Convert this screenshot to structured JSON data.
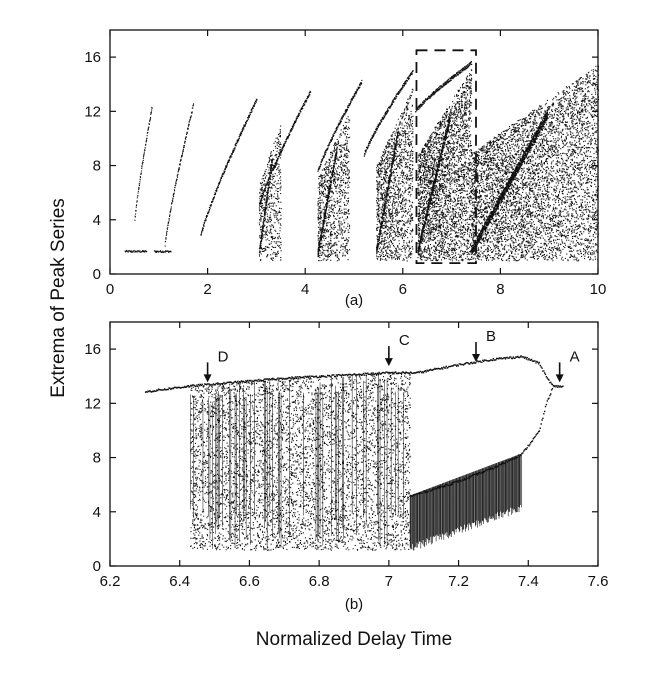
{
  "figure": {
    "ylabel": "Extrema of Peak Series",
    "xlabel": "Normalized Delay Time"
  },
  "chart_data": [
    {
      "type": "scatter",
      "panel_label": "(a)",
      "xlim": [
        0,
        10
      ],
      "ylim": [
        0,
        18
      ],
      "xticks": [
        0,
        2,
        4,
        6,
        8,
        10
      ],
      "yticks": [
        0,
        4,
        8,
        12,
        16
      ],
      "grid": false,
      "highlight_box": {
        "x": [
          6.28,
          7.5
        ],
        "y": [
          0.8,
          16.5
        ],
        "style": "dashed"
      },
      "branches": [
        {
          "x": [
            0.5,
            0.85
          ],
          "y": [
            4.0,
            12.3
          ]
        },
        {
          "x": [
            1.12,
            1.7
          ],
          "y": [
            2.2,
            12.5
          ]
        },
        {
          "x": [
            1.85,
            3.0
          ],
          "y": [
            2.8,
            12.9
          ]
        },
        {
          "x": [
            3.05,
            4.1
          ],
          "y": [
            5.0,
            13.5
          ]
        },
        {
          "x": [
            4.25,
            5.15
          ],
          "y": [
            7.5,
            14.2
          ]
        },
        {
          "x": [
            5.2,
            6.2
          ],
          "y": [
            8.8,
            15.0
          ]
        },
        {
          "x": [
            6.25,
            7.4
          ],
          "y": [
            12.0,
            15.6
          ]
        }
      ],
      "flat_segments": [
        {
          "x": [
            0.3,
            0.75
          ],
          "y": 1.7
        },
        {
          "x": [
            0.9,
            1.25
          ],
          "y": 1.7
        }
      ],
      "bands": [
        {
          "x": [
            3.05,
            3.5
          ],
          "y": [
            1.0,
            11.2
          ],
          "density": 0.6
        },
        {
          "x": [
            4.25,
            4.9
          ],
          "y": [
            1.0,
            12.0
          ],
          "density": 0.7
        },
        {
          "x": [
            5.45,
            6.2
          ],
          "y": [
            1.0,
            13.8
          ],
          "density": 0.8
        },
        {
          "x": [
            6.3,
            7.4
          ],
          "y": [
            1.0,
            15.2
          ],
          "density": 1.0
        },
        {
          "x": [
            7.4,
            10.0
          ],
          "y": [
            1.0,
            15.5
          ],
          "density": 1.0
        }
      ]
    },
    {
      "type": "scatter",
      "panel_label": "(b)",
      "xlim": [
        6.2,
        7.6
      ],
      "ylim": [
        0,
        18
      ],
      "xticks": [
        6.2,
        6.4,
        6.6,
        6.8,
        7.0,
        7.2,
        7.4,
        7.6
      ],
      "yticks": [
        0,
        4,
        8,
        12,
        16
      ],
      "grid": false,
      "annotations": [
        {
          "label": "D",
          "x": 6.48,
          "y": 13.4
        },
        {
          "label": "C",
          "x": 7.0,
          "y": 14.6
        },
        {
          "label": "B",
          "x": 7.25,
          "y": 14.9
        },
        {
          "label": "A",
          "x": 7.49,
          "y": 13.4
        }
      ],
      "upper_branch": {
        "x": [
          6.3,
          6.42,
          6.7,
          7.0,
          7.08,
          7.2,
          7.3,
          7.38,
          7.43,
          7.45,
          7.47,
          7.5
        ],
        "y": [
          12.9,
          13.3,
          13.9,
          14.3,
          14.3,
          14.9,
          15.3,
          15.5,
          15.0,
          14.0,
          13.3,
          13.3
        ]
      },
      "lower_branch": {
        "x": [
          7.06,
          7.2,
          7.3,
          7.38,
          7.43,
          7.45,
          7.47
        ],
        "y": [
          5.2,
          6.3,
          7.3,
          8.3,
          10.0,
          12.0,
          13.3
        ]
      },
      "chaotic_band": {
        "x": [
          6.43,
          7.06
        ],
        "y": [
          1.2,
          14.3
        ]
      },
      "stripe_band": {
        "x": [
          7.06,
          7.38
        ],
        "y_bottom": [
          1.0,
          4.0
        ],
        "y_top": [
          5.2,
          8.3
        ]
      }
    }
  ]
}
